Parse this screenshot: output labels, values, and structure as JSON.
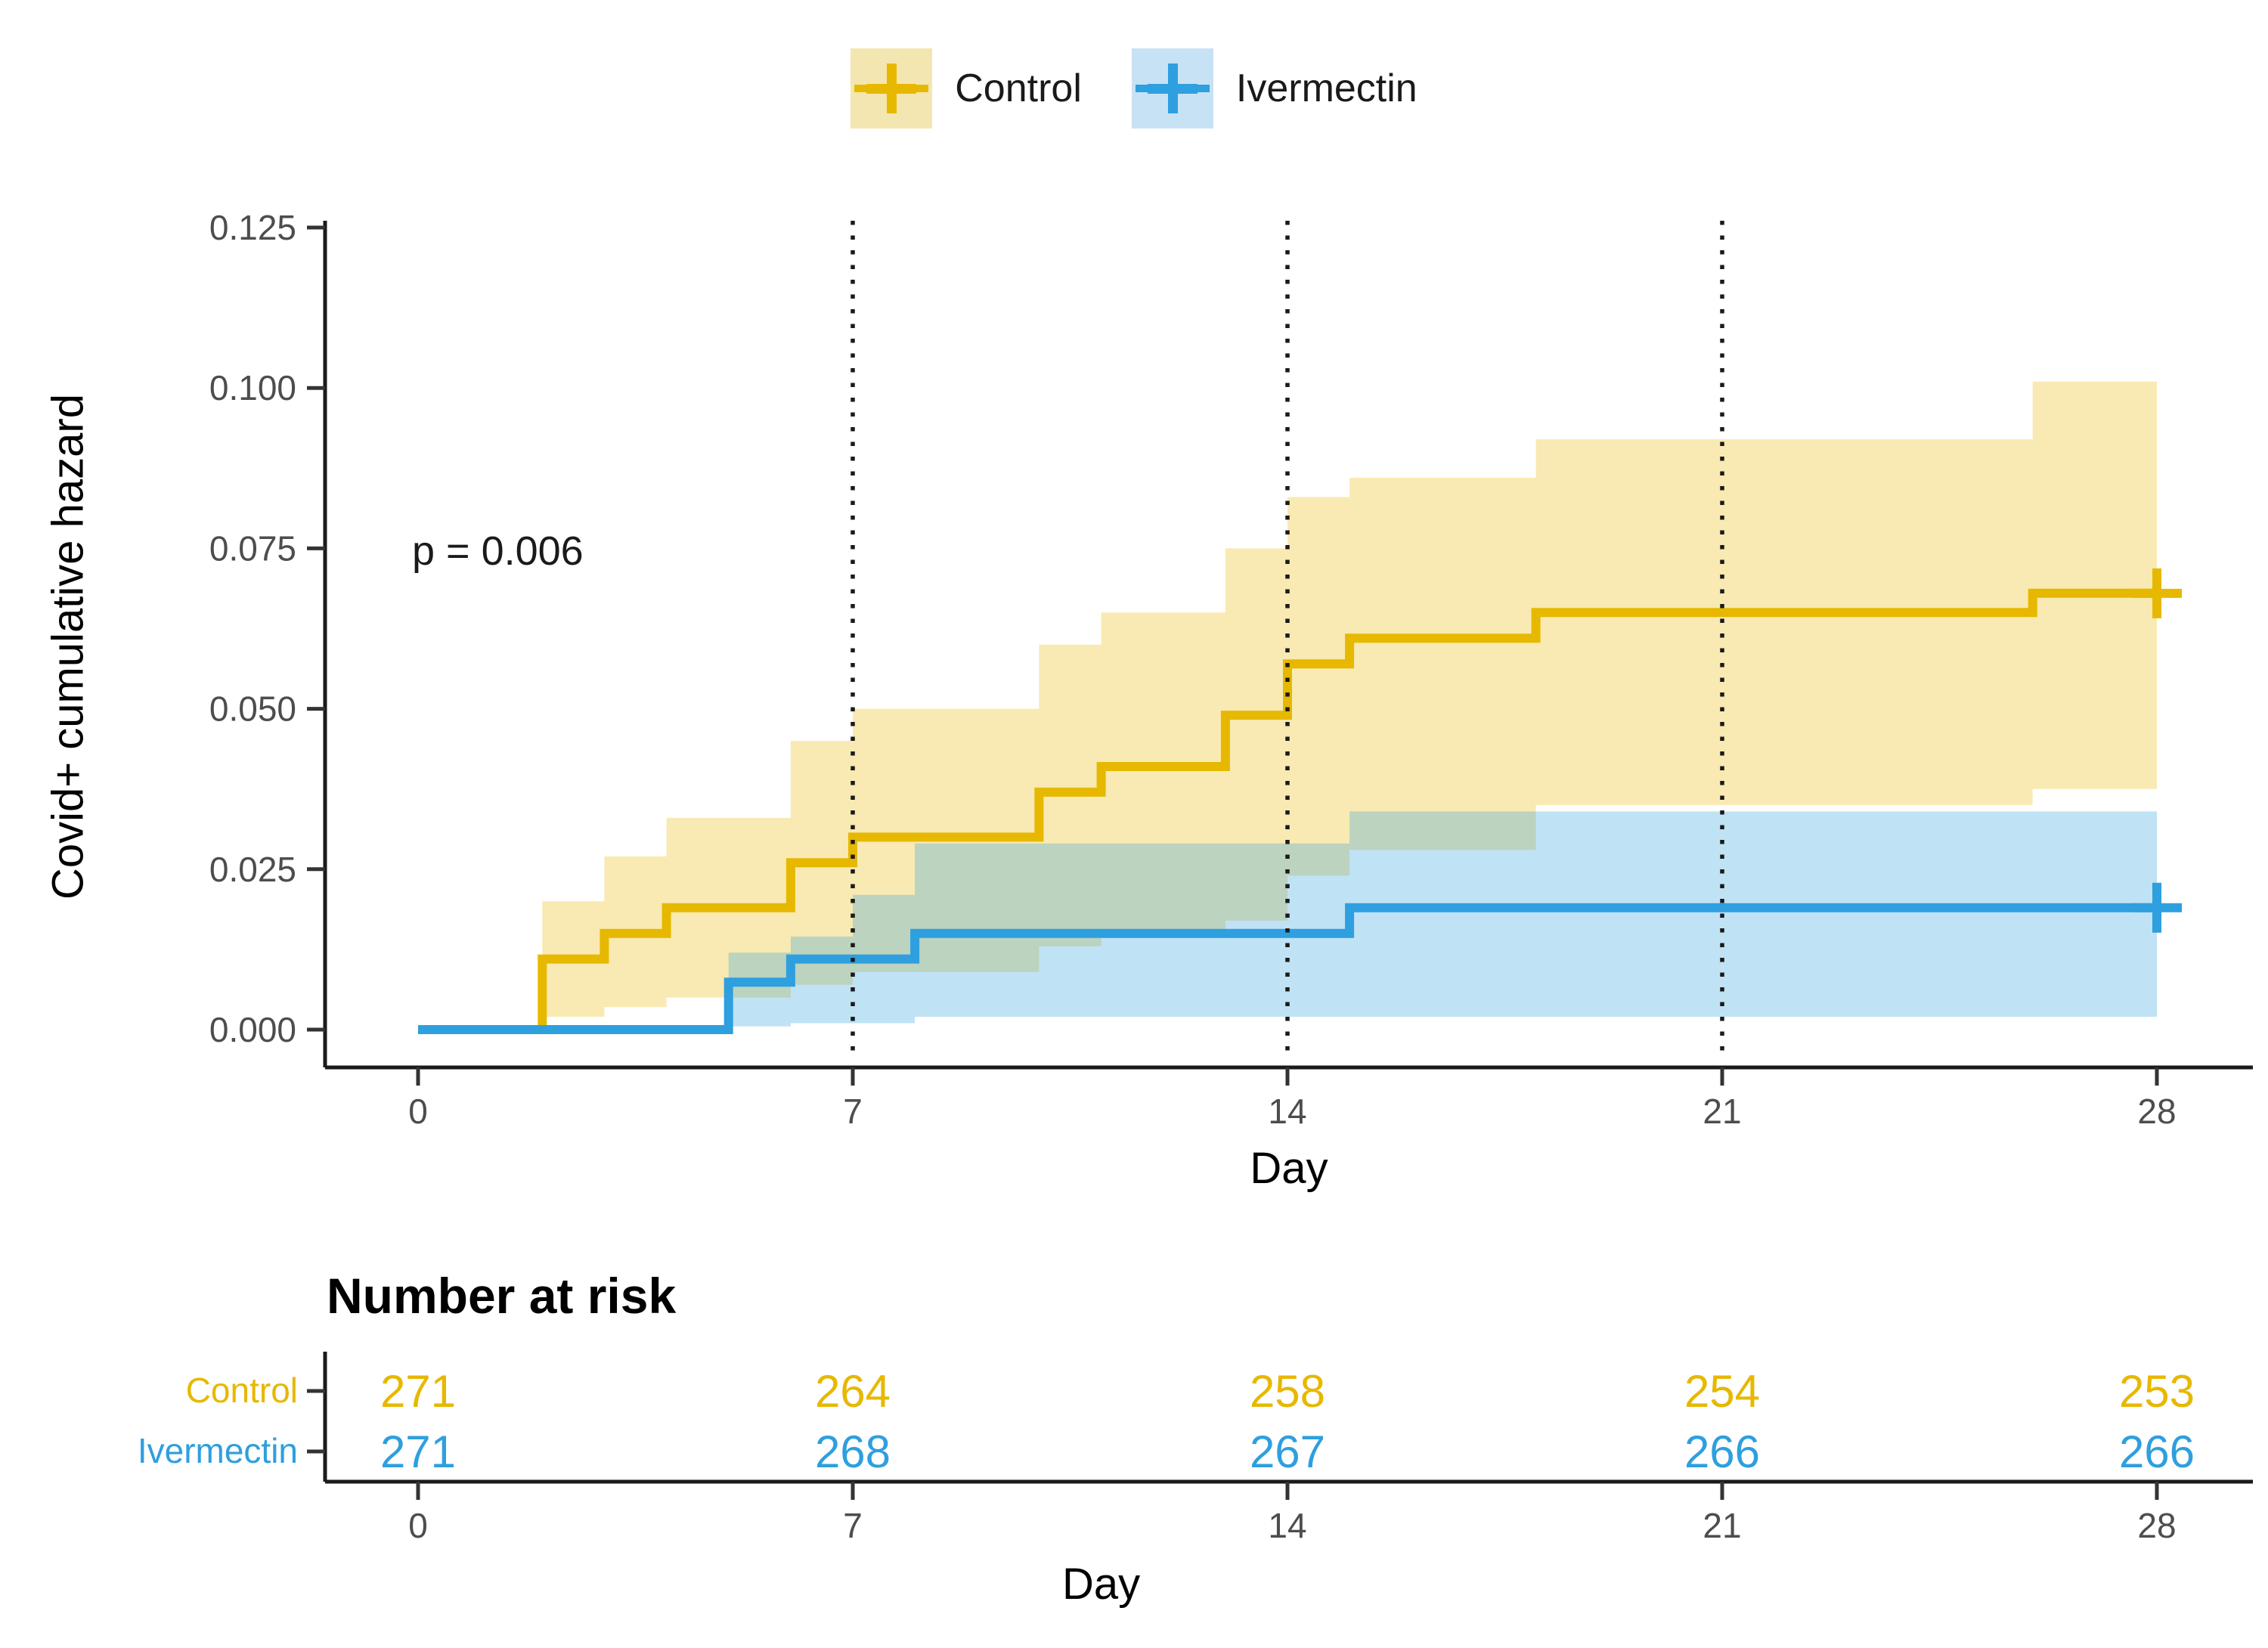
{
  "legend": {
    "items": [
      {
        "label": "Control",
        "color": "#E7B800",
        "fill": "#F4E6B0"
      },
      {
        "label": "Ivermectin",
        "color": "#2E9FDF",
        "fill": "#C7E2F5"
      }
    ]
  },
  "pvalue": "p = 0.006",
  "axes": {
    "y_label": "Covid+ cumulative hazard",
    "x_label": "Day",
    "y_ticks": [
      "0.000",
      "0.025",
      "0.050",
      "0.075",
      "0.100",
      "0.125"
    ],
    "x_ticks": [
      0,
      7,
      14,
      21,
      28
    ],
    "vlines": [
      7,
      14,
      21
    ]
  },
  "risk_table": {
    "title": "Number at risk",
    "x_label": "Day",
    "x_ticks": [
      0,
      7,
      14,
      21,
      28
    ],
    "rows": [
      {
        "label": "Control",
        "color": "#E7B800",
        "values": [
          271,
          264,
          258,
          254,
          253
        ]
      },
      {
        "label": "Ivermectin",
        "color": "#2E9FDF",
        "values": [
          271,
          268,
          267,
          266,
          266
        ]
      }
    ]
  },
  "chart_data": {
    "type": "line",
    "subtype": "step-function-cumulative-hazard",
    "title": "",
    "xlabel": "Day",
    "ylabel": "Covid+ cumulative hazard",
    "xlim": [
      0,
      28
    ],
    "ylim": [
      0,
      0.125
    ],
    "x_ticks": [
      0,
      7,
      14,
      21,
      28
    ],
    "y_ticks": [
      0,
      0.025,
      0.05,
      0.075,
      0.1,
      0.125
    ],
    "vlines_dotted_x": [
      7,
      14,
      21
    ],
    "annotation": "p = 0.006",
    "legend_position": "top",
    "band_opacity": 0.3,
    "series": [
      {
        "name": "Control",
        "color": "#E7B800",
        "start": [
          0,
          0
        ],
        "end_day": 28,
        "censor": [
          28,
          0.068
        ],
        "steps": [
          [
            2,
            0.011
          ],
          [
            3,
            0.015
          ],
          [
            4,
            0.019
          ],
          [
            6,
            0.026
          ],
          [
            7,
            0.03
          ],
          [
            10,
            0.037
          ],
          [
            11,
            0.041
          ],
          [
            13,
            0.049
          ],
          [
            14,
            0.057
          ],
          [
            15,
            0.061
          ],
          [
            18,
            0.065
          ],
          [
            26,
            0.068
          ]
        ],
        "ci_upper": [
          [
            2,
            0.02
          ],
          [
            3,
            0.027
          ],
          [
            4,
            0.033
          ],
          [
            6,
            0.045
          ],
          [
            7,
            0.05
          ],
          [
            10,
            0.06
          ],
          [
            11,
            0.065
          ],
          [
            13,
            0.075
          ],
          [
            14,
            0.083
          ],
          [
            15,
            0.086
          ],
          [
            18,
            0.092
          ],
          [
            26,
            0.101
          ]
        ],
        "ci_lower": [
          [
            2,
            0.002
          ],
          [
            3,
            0.0035
          ],
          [
            4,
            0.005
          ],
          [
            6,
            0.007
          ],
          [
            7,
            0.009
          ],
          [
            10,
            0.013
          ],
          [
            11,
            0.015
          ],
          [
            13,
            0.017
          ],
          [
            14,
            0.024
          ],
          [
            15,
            0.028
          ],
          [
            18,
            0.035
          ],
          [
            26,
            0.0375
          ]
        ]
      },
      {
        "name": "Ivermectin",
        "color": "#2E9FDF",
        "start": [
          0,
          0
        ],
        "end_day": 28,
        "censor": [
          28,
          0.019
        ],
        "steps": [
          [
            5,
            0.0074
          ],
          [
            6,
            0.011
          ],
          [
            8,
            0.015
          ],
          [
            15,
            0.019
          ]
        ],
        "ci_upper": [
          [
            5,
            0.012
          ],
          [
            6,
            0.0145
          ],
          [
            7,
            0.021
          ],
          [
            8,
            0.029
          ],
          [
            15,
            0.034
          ]
        ],
        "ci_lower": [
          [
            5,
            0.0005
          ],
          [
            6,
            0.001
          ],
          [
            8,
            0.002
          ],
          [
            15,
            0.002
          ]
        ]
      }
    ],
    "risk_table": {
      "title": "Number at risk",
      "x": [
        0,
        7,
        14,
        21,
        28
      ],
      "rows": [
        {
          "name": "Control",
          "values": [
            271,
            264,
            258,
            254,
            253
          ]
        },
        {
          "name": "Ivermectin",
          "values": [
            271,
            268,
            267,
            266,
            266
          ]
        }
      ]
    }
  }
}
